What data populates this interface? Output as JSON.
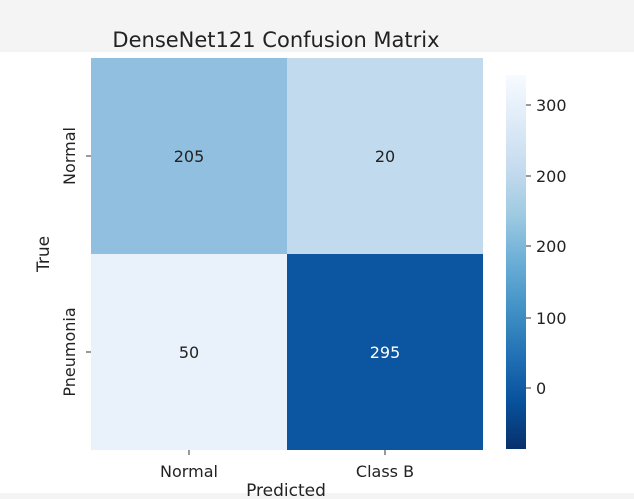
{
  "chart_data": {
    "type": "heatmap",
    "title": "DenseNet121 Confusion Matrix",
    "xlabel": "Predicted",
    "ylabel": "True",
    "x_categories": [
      "Normal",
      "Class B"
    ],
    "y_categories": [
      "Normal",
      "Pneumonia"
    ],
    "values": [
      [
        205,
        20
      ],
      [
        50,
        295
      ]
    ],
    "cell_colors": [
      [
        "#91bfdf",
        "#c2daee"
      ],
      [
        "#e9f2fb",
        "#0c56a1"
      ]
    ],
    "colorbar": {
      "ticks": [
        "300",
        "200",
        "200",
        "100",
        "0"
      ],
      "colormap": "Blues_r",
      "colors": [
        "#f7fbff",
        "#deebf7",
        "#c6dbef",
        "#9ecae1",
        "#6baed6",
        "#4292c6",
        "#2171b5",
        "#08519c",
        "#08306b"
      ]
    }
  }
}
